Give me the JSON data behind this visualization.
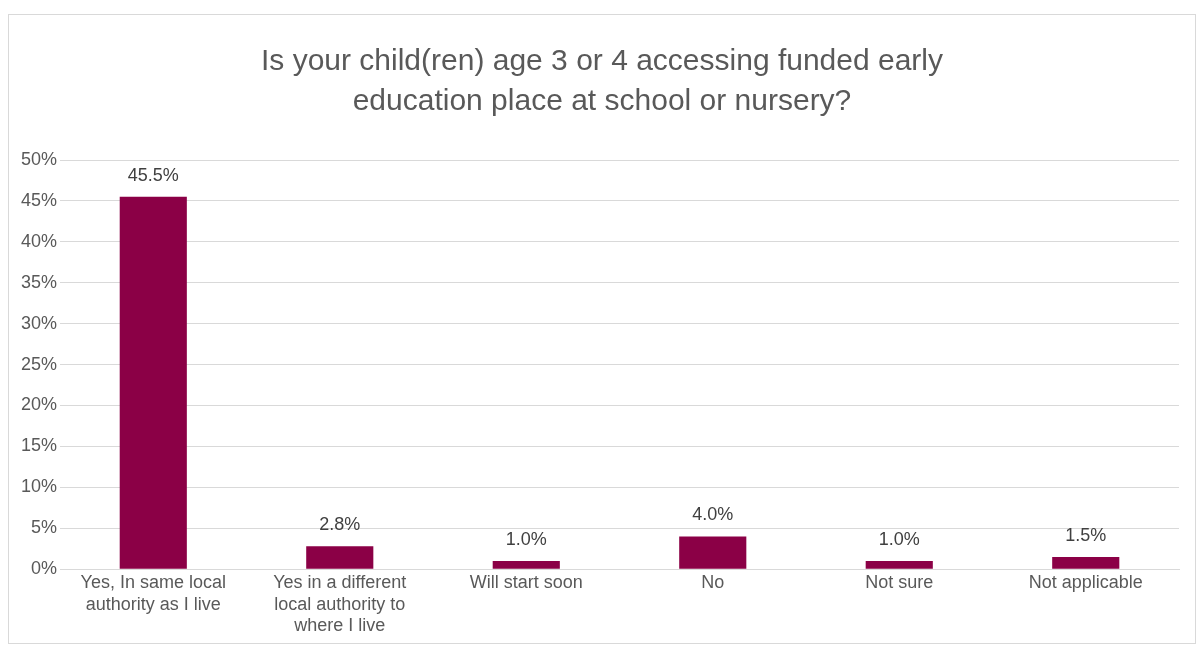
{
  "chart_data": {
    "type": "bar",
    "title": "Is your child(ren) age 3 or 4 accessing funded early education place at school or nursery?",
    "categories": [
      "Yes, In same local authority as I live",
      "Yes in a different local authority to where I live",
      "Will start soon",
      "No",
      "Not sure",
      "Not applicable"
    ],
    "values": [
      45.5,
      2.8,
      1.0,
      4.0,
      1.0,
      1.5
    ],
    "value_labels": [
      "45.5%",
      "2.8%",
      "1.0%",
      "4.0%",
      "1.0%",
      "1.5%"
    ],
    "color": "#8b0046",
    "ylim": [
      0,
      50
    ],
    "yticks": [
      {
        "value": 0,
        "label": "0%"
      },
      {
        "value": 5,
        "label": "5%"
      },
      {
        "value": 10,
        "label": "10%"
      },
      {
        "value": 15,
        "label": "15%"
      },
      {
        "value": 20,
        "label": "20%"
      },
      {
        "value": 25,
        "label": "25%"
      },
      {
        "value": 30,
        "label": "30%"
      },
      {
        "value": 35,
        "label": "35%"
      },
      {
        "value": 40,
        "label": "40%"
      },
      {
        "value": 45,
        "label": "45%"
      },
      {
        "value": 50,
        "label": "50%"
      }
    ],
    "grid": "y",
    "legend": false
  }
}
